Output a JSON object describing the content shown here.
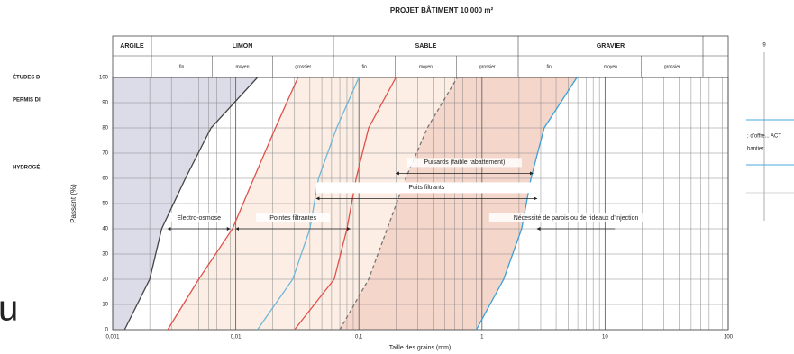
{
  "chart_data": {
    "type": "line",
    "title": "PROJET BÂTIMENT 10 000 m²",
    "grain_classes": [
      {
        "label": "ARGILE",
        "sub": []
      },
      {
        "label": "LIMON",
        "sub": [
          "fin",
          "moyen",
          "grossier"
        ]
      },
      {
        "label": "SABLE",
        "sub": [
          "fin",
          "moyen",
          "grossier"
        ]
      },
      {
        "label": "GRAVIER",
        "sub": [
          "fin",
          "moyen",
          "grossier"
        ]
      }
    ],
    "y_label": "Passant (%)",
    "x_label": "Taille des grains (mm)",
    "log_x": true,
    "grid": true,
    "xlim": [
      0.001,
      100
    ],
    "ylim": [
      0,
      100
    ],
    "xticks": [
      {
        "value": 0.001,
        "label": "0,001"
      },
      {
        "value": 0.01,
        "label": "0,01"
      },
      {
        "value": 0.1,
        "label": "0,1"
      },
      1,
      10,
      100
    ],
    "yticks": [
      0,
      10,
      20,
      30,
      40,
      50,
      60,
      70,
      80,
      90,
      100
    ],
    "series": [
      {
        "color": "#444444",
        "fill": "#dcdbe8",
        "x": [
          0.00125,
          0.002,
          0.0025,
          0.0039,
          0.0063,
          0.015
        ],
        "values": [
          0,
          20,
          40,
          60,
          80,
          100
        ]
      },
      {
        "color": "#e0504a",
        "x": [
          0.0028,
          0.005,
          0.0094,
          0.014,
          0.021,
          0.032
        ],
        "values": [
          0,
          20,
          40,
          60,
          80,
          100
        ]
      },
      {
        "color": "#6fb6d8",
        "x": [
          0.015,
          0.029,
          0.04,
          0.047,
          0.066,
          0.1
        ],
        "values": [
          0,
          20,
          40,
          60,
          80,
          100
        ]
      },
      {
        "color": "#e0504a",
        "x": [
          0.03,
          0.063,
          0.08,
          0.095,
          0.12,
          0.2
        ],
        "values": [
          0,
          20,
          40,
          60,
          80,
          100
        ]
      },
      {
        "color": "#777777",
        "dashed": true,
        "x": [
          0.07,
          0.12,
          0.17,
          0.24,
          0.36,
          0.63
        ],
        "values": [
          0,
          20,
          40,
          60,
          80,
          100
        ]
      },
      {
        "color": "#3aa0d8",
        "x": [
          0.9,
          1.5,
          2.1,
          2.5,
          3.2,
          5.9
        ],
        "values": [
          0,
          20,
          40,
          60,
          80,
          100
        ]
      }
    ],
    "band_fills": [
      {
        "between": [
          1,
          5
        ],
        "color": "#fbeadd"
      },
      {
        "between": [
          4,
          5
        ],
        "color": "#f2cfc3"
      }
    ],
    "annotations": [
      {
        "text": "Electro-osmose",
        "x": [
          0.0028,
          0.009
        ],
        "y": 40
      },
      {
        "text": "Pointes filtrantes",
        "x": [
          0.01,
          0.085
        ],
        "y": 40
      },
      {
        "text": "Puisards (faible rabattement)",
        "x": [
          0.2,
          2.6
        ],
        "y": 62
      },
      {
        "text": "Puits filtrants",
        "x": [
          0.045,
          2.8
        ],
        "y": 52
      },
      {
        "text": "Nécessité de parois ou de rideaux d'injection",
        "x": [
          12,
          2.8
        ],
        "y": 40
      }
    ]
  },
  "side_texts": [
    "ÉTUDES D",
    "PERMIS DI",
    "HYDROGÉ",
    "u"
  ],
  "right_panel": [
    "9",
    "; d'offre... ACT",
    "hantier"
  ]
}
